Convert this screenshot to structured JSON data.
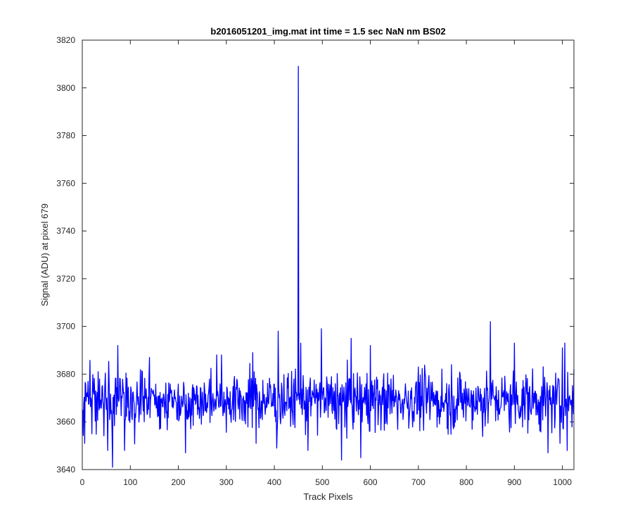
{
  "chart_data": {
    "type": "line",
    "title": "b2016051201_img.mat int time = 1.5 sec  NaN nm BS02",
    "xlabel": "Track Pixels",
    "ylabel": "Signal (ADU) at pixel 679",
    "xlim": [
      0,
      1024
    ],
    "ylim": [
      3640,
      3820
    ],
    "xticks": [
      "0",
      "100",
      "200",
      "300",
      "400",
      "500",
      "600",
      "700",
      "800",
      "900",
      "1000"
    ],
    "yticks": [
      "3640",
      "3660",
      "3680",
      "3700",
      "3720",
      "3740",
      "3760",
      "3780",
      "3800",
      "3820"
    ],
    "grid": false,
    "legend": "none",
    "color": "#0000ff",
    "series": [
      {
        "x_start": 1,
        "x_step": 1,
        "baseline": 3669,
        "noise_range": [
          3641,
          3702
        ],
        "notable_points": [
          [
            1,
            3665
          ],
          [
            5,
            3651
          ],
          [
            15,
            3672
          ],
          [
            20,
            3655
          ],
          [
            33,
            3681
          ],
          [
            53,
            3648
          ],
          [
            63,
            3641
          ],
          [
            74,
            3692
          ],
          [
            88,
            3648
          ],
          [
            140,
            3687
          ],
          [
            215,
            3647
          ],
          [
            290,
            3688
          ],
          [
            355,
            3689
          ],
          [
            405,
            3649
          ],
          [
            408,
            3698
          ],
          [
            440,
            3675
          ],
          [
            447,
            3669
          ],
          [
            450,
            3809
          ],
          [
            452,
            3672
          ],
          [
            455,
            3693
          ],
          [
            470,
            3648
          ],
          [
            498,
            3699
          ],
          [
            540,
            3644
          ],
          [
            560,
            3695
          ],
          [
            580,
            3645
          ],
          [
            600,
            3692
          ],
          [
            700,
            3683
          ],
          [
            850,
            3702
          ],
          [
            900,
            3693
          ],
          [
            970,
            3647
          ],
          [
            995,
            3651
          ],
          [
            1000,
            3691
          ],
          [
            1005,
            3693
          ],
          [
            1010,
            3648
          ],
          [
            1024,
            3682
          ]
        ]
      }
    ]
  }
}
